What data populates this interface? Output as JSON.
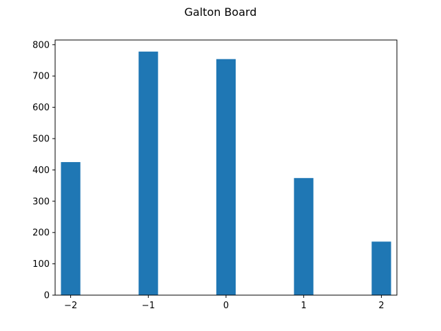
{
  "chart_data": {
    "type": "bar",
    "title": "Galton Board",
    "xlabel": "",
    "ylabel": "",
    "categories": [
      -2,
      -1,
      0,
      1,
      2
    ],
    "x_tick_labels": [
      "−2",
      "−1",
      "0",
      "1",
      "2"
    ],
    "values": [
      425,
      778,
      754,
      374,
      171
    ],
    "xlim": [
      -2.2,
      2.2
    ],
    "ylim": [
      0,
      815
    ],
    "y_ticks": [
      0,
      100,
      200,
      300,
      400,
      500,
      600,
      700,
      800
    ],
    "bar_width": 0.25,
    "bar_color": "#1f77b4",
    "grid": false,
    "legend": "none"
  }
}
